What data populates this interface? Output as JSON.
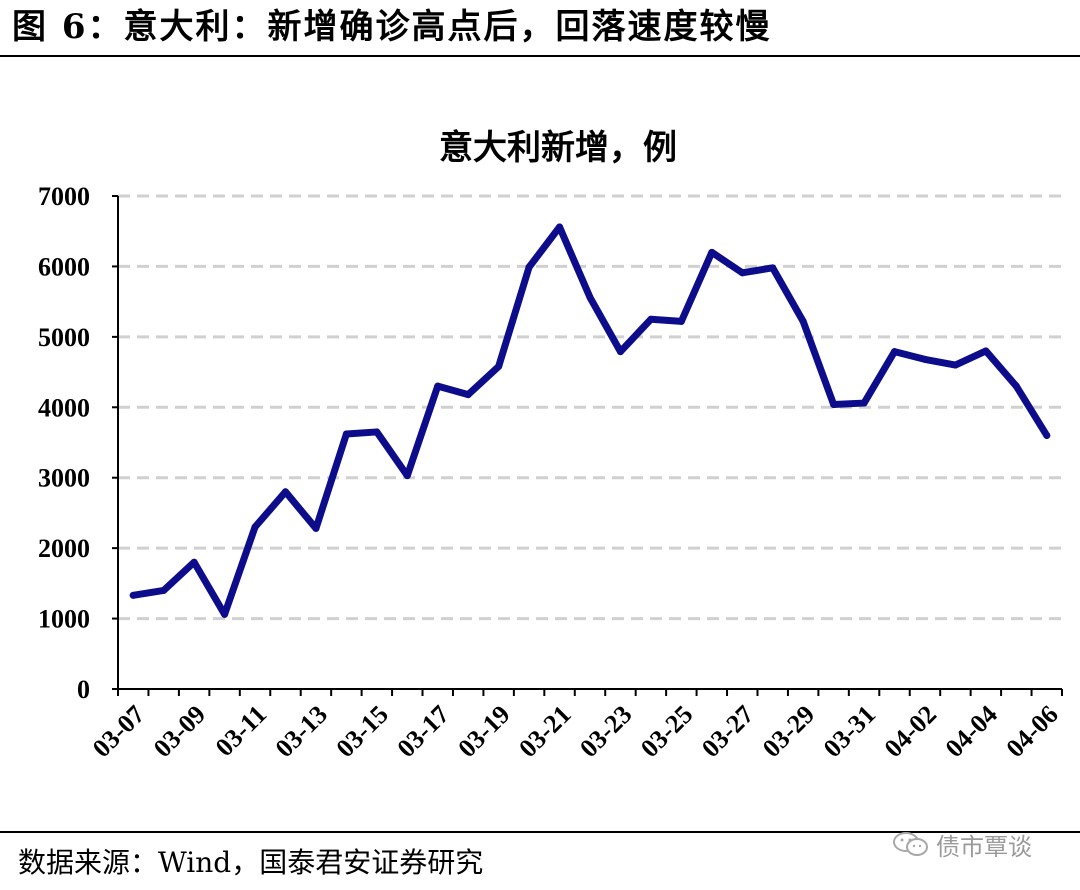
{
  "figure": {
    "title": "图 6：意大利：新增确诊高点后，回落速度较慢",
    "source": "数据来源：Wind，国泰君安证券研究",
    "watermark": "债市覃谈",
    "watermark_icon": "wechat-icon"
  },
  "chart_data": {
    "type": "line",
    "title": "意大利新增，例",
    "xlabel": "",
    "ylabel": "",
    "x": [
      "03-07",
      "03-08",
      "03-09",
      "03-10",
      "03-11",
      "03-12",
      "03-13",
      "03-14",
      "03-15",
      "03-16",
      "03-17",
      "03-18",
      "03-19",
      "03-20",
      "03-21",
      "03-22",
      "03-23",
      "03-24",
      "03-25",
      "03-26",
      "03-27",
      "03-28",
      "03-29",
      "03-30",
      "03-31",
      "04-01",
      "04-02",
      "04-03",
      "04-04",
      "04-05",
      "04-06"
    ],
    "x_tick_labels": [
      "03-07",
      "03-09",
      "03-11",
      "03-13",
      "03-15",
      "03-17",
      "03-19",
      "03-21",
      "03-23",
      "03-25",
      "03-27",
      "03-29",
      "03-31",
      "04-02",
      "04-04",
      "04-06"
    ],
    "series": [
      {
        "name": "",
        "color": "#0d0d8c",
        "values": [
          1330,
          1400,
          1800,
          1060,
          2300,
          2800,
          2280,
          3620,
          3650,
          3030,
          4300,
          4180,
          4580,
          5990,
          6560,
          5560,
          4790,
          5250,
          5220,
          6200,
          5910,
          5980,
          5220,
          4040,
          4060,
          4790,
          4680,
          4600,
          4800,
          4300,
          3600
        ]
      }
    ],
    "ylim": [
      0,
      7000
    ],
    "y_ticks": [
      0,
      1000,
      2000,
      3000,
      4000,
      5000,
      6000,
      7000
    ],
    "grid": true,
    "grid_style": "dashed horizontal",
    "legend": "none"
  }
}
